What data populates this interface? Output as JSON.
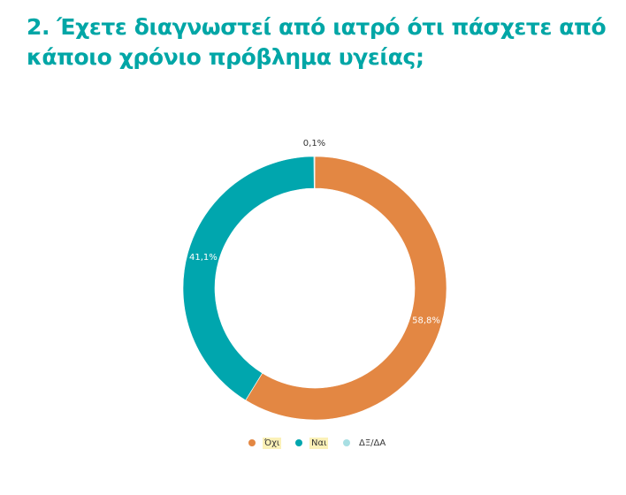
{
  "title": "2. Έχετε διαγνωστεί από ιατρό ότι πάσχετε από κάποιο χρόνιο πρόβλημα υγείας;",
  "colors": {
    "title": "#00a6a6",
    "label_text": "#ffffff",
    "outside_label_text": "#333333",
    "legend_highlight": "#fbf1b8"
  },
  "chart_data": {
    "type": "pie",
    "donut": true,
    "categories": [
      "Όχι",
      "Ναι",
      "ΔΞ/ΔΑ"
    ],
    "values": [
      58.8,
      41.1,
      0.1
    ],
    "value_labels": [
      "58,8%",
      "41,1%",
      "0,1%"
    ],
    "colors": [
      "#e38743",
      "#00a6ae",
      "#a8dfe3"
    ],
    "start_angle_deg": 0,
    "direction": "clockwise",
    "legend_position": "bottom"
  },
  "legend": [
    {
      "label": "Όχι",
      "color": "#e38743",
      "highlight": true
    },
    {
      "label": "Ναι",
      "color": "#00a6ae",
      "highlight": true
    },
    {
      "label": "ΔΞ/ΔΑ",
      "color": "#a8dfe3",
      "highlight": false
    }
  ]
}
